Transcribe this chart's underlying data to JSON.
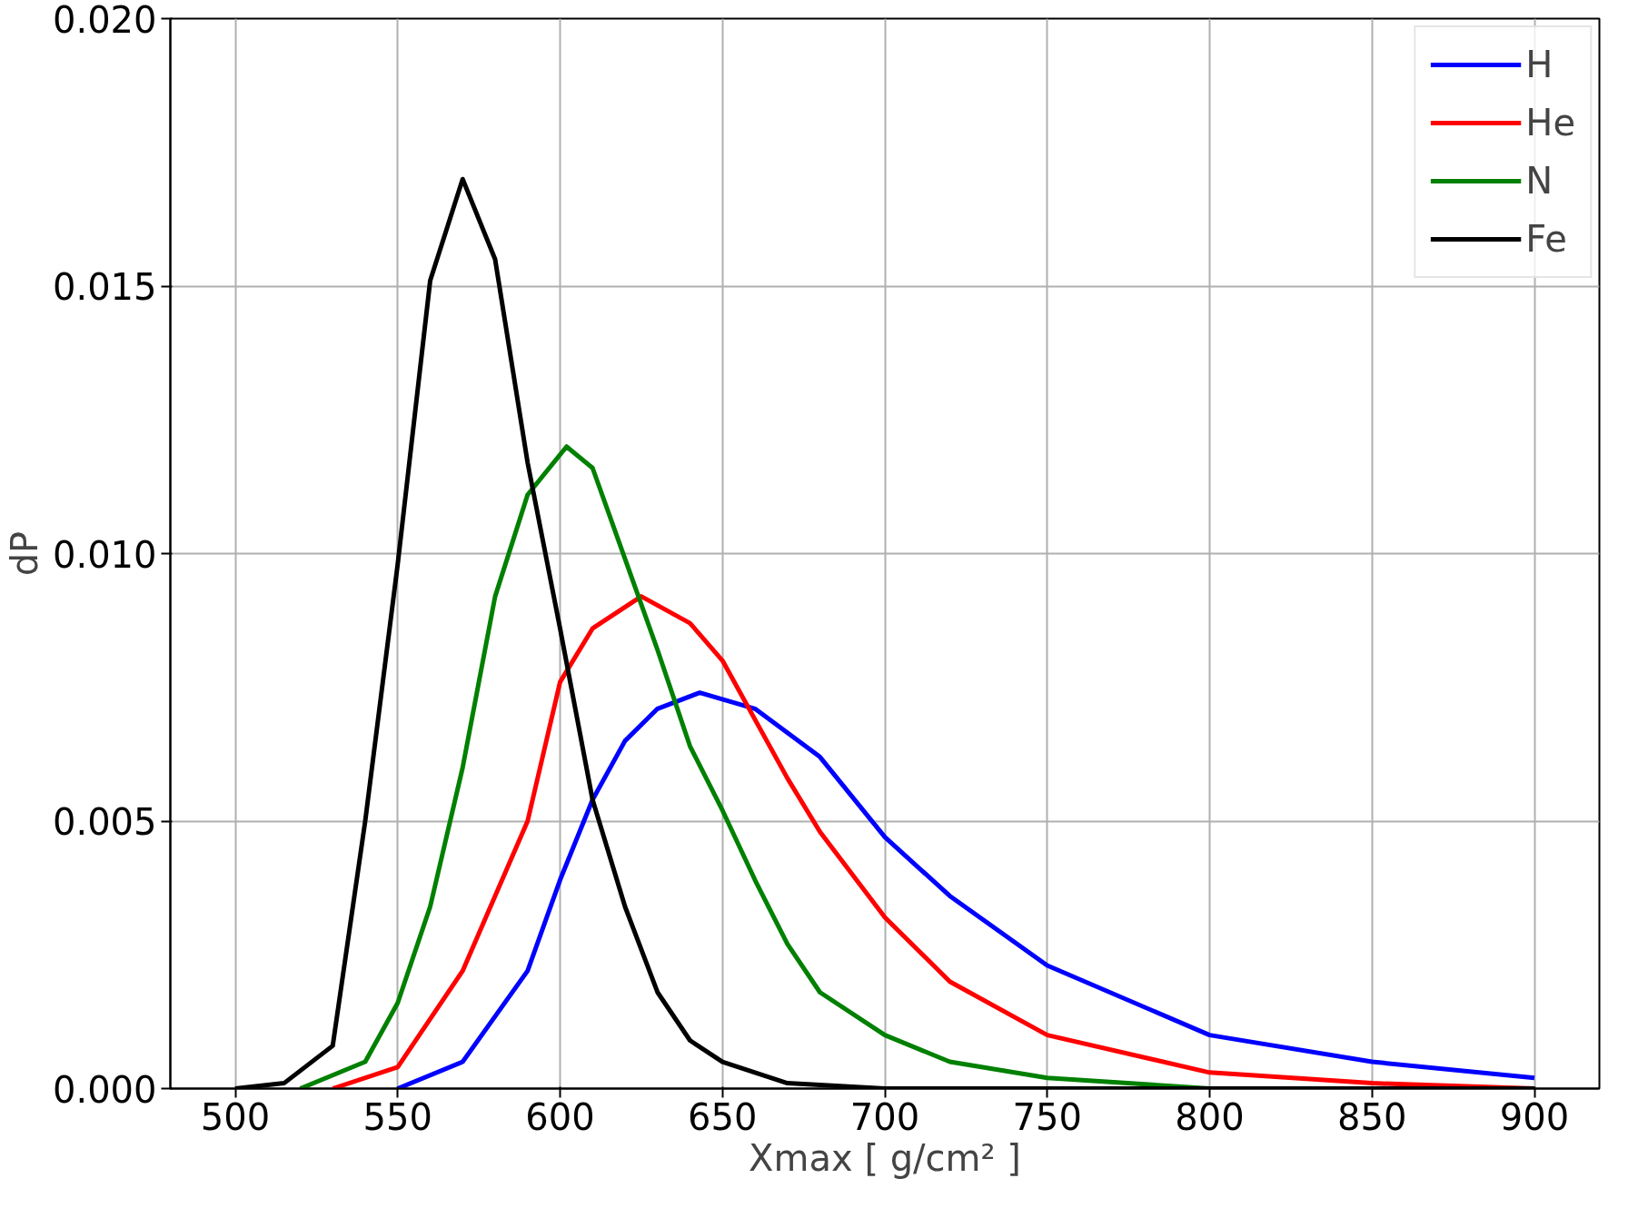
{
  "chart_data": {
    "type": "line",
    "xlabel": "Xmax [ g/cm² ]",
    "ylabel": "dP",
    "xlim": [
      480,
      920
    ],
    "ylim": [
      0,
      0.02
    ],
    "xticks": [
      500,
      550,
      600,
      650,
      700,
      750,
      800,
      850,
      900
    ],
    "yticks": [
      {
        "value": 0,
        "label": "0.000"
      },
      {
        "value": 0.005,
        "label": "0.005"
      },
      {
        "value": 0.01,
        "label": "0.010"
      },
      {
        "value": 0.015,
        "label": "0.015"
      },
      {
        "value": 0.02,
        "label": "0.020"
      }
    ],
    "grid": true,
    "legend": "top right",
    "line_style": "solid",
    "marker": "none",
    "series": [
      {
        "name": "H",
        "color": "#0000ff",
        "x": [
          550,
          570,
          590,
          600,
          610,
          620,
          630,
          643,
          660,
          680,
          700,
          720,
          750,
          800,
          850,
          900
        ],
        "values": [
          0,
          0.0005,
          0.0022,
          0.0039,
          0.0054,
          0.0065,
          0.0071,
          0.0074,
          0.0071,
          0.0062,
          0.0047,
          0.0036,
          0.0023,
          0.001,
          0.0005,
          0.0002
        ]
      },
      {
        "name": "He",
        "color": "#ff0000",
        "x": [
          530,
          550,
          570,
          590,
          600,
          610,
          625,
          640,
          650,
          660,
          670,
          680,
          700,
          720,
          750,
          800,
          850,
          900
        ],
        "values": [
          0,
          0.0004,
          0.0022,
          0.005,
          0.0076,
          0.0086,
          0.0092,
          0.0087,
          0.008,
          0.0069,
          0.0058,
          0.0048,
          0.0032,
          0.002,
          0.001,
          0.0003,
          0.0001,
          0
        ]
      },
      {
        "name": "N",
        "color": "#008000",
        "x": [
          520,
          540,
          550,
          560,
          570,
          580,
          590,
          602,
          610,
          620,
          630,
          640,
          650,
          660,
          670,
          680,
          700,
          720,
          750,
          800,
          900
        ],
        "values": [
          0,
          0.0005,
          0.0016,
          0.0034,
          0.006,
          0.0092,
          0.0111,
          0.012,
          0.0116,
          0.0099,
          0.0082,
          0.0064,
          0.0052,
          0.0039,
          0.0027,
          0.0018,
          0.001,
          0.0005,
          0.0002,
          0,
          0
        ]
      },
      {
        "name": "Fe",
        "color": "#000000",
        "x": [
          500,
          515,
          530,
          540,
          550,
          560,
          570,
          580,
          590,
          600,
          610,
          620,
          630,
          640,
          650,
          670,
          700,
          900
        ],
        "values": [
          0,
          0.0001,
          0.0008,
          0.005,
          0.0098,
          0.0151,
          0.017,
          0.0155,
          0.0117,
          0.0086,
          0.0054,
          0.0034,
          0.0018,
          0.0009,
          0.0005,
          0.0001,
          0,
          0
        ]
      }
    ]
  }
}
